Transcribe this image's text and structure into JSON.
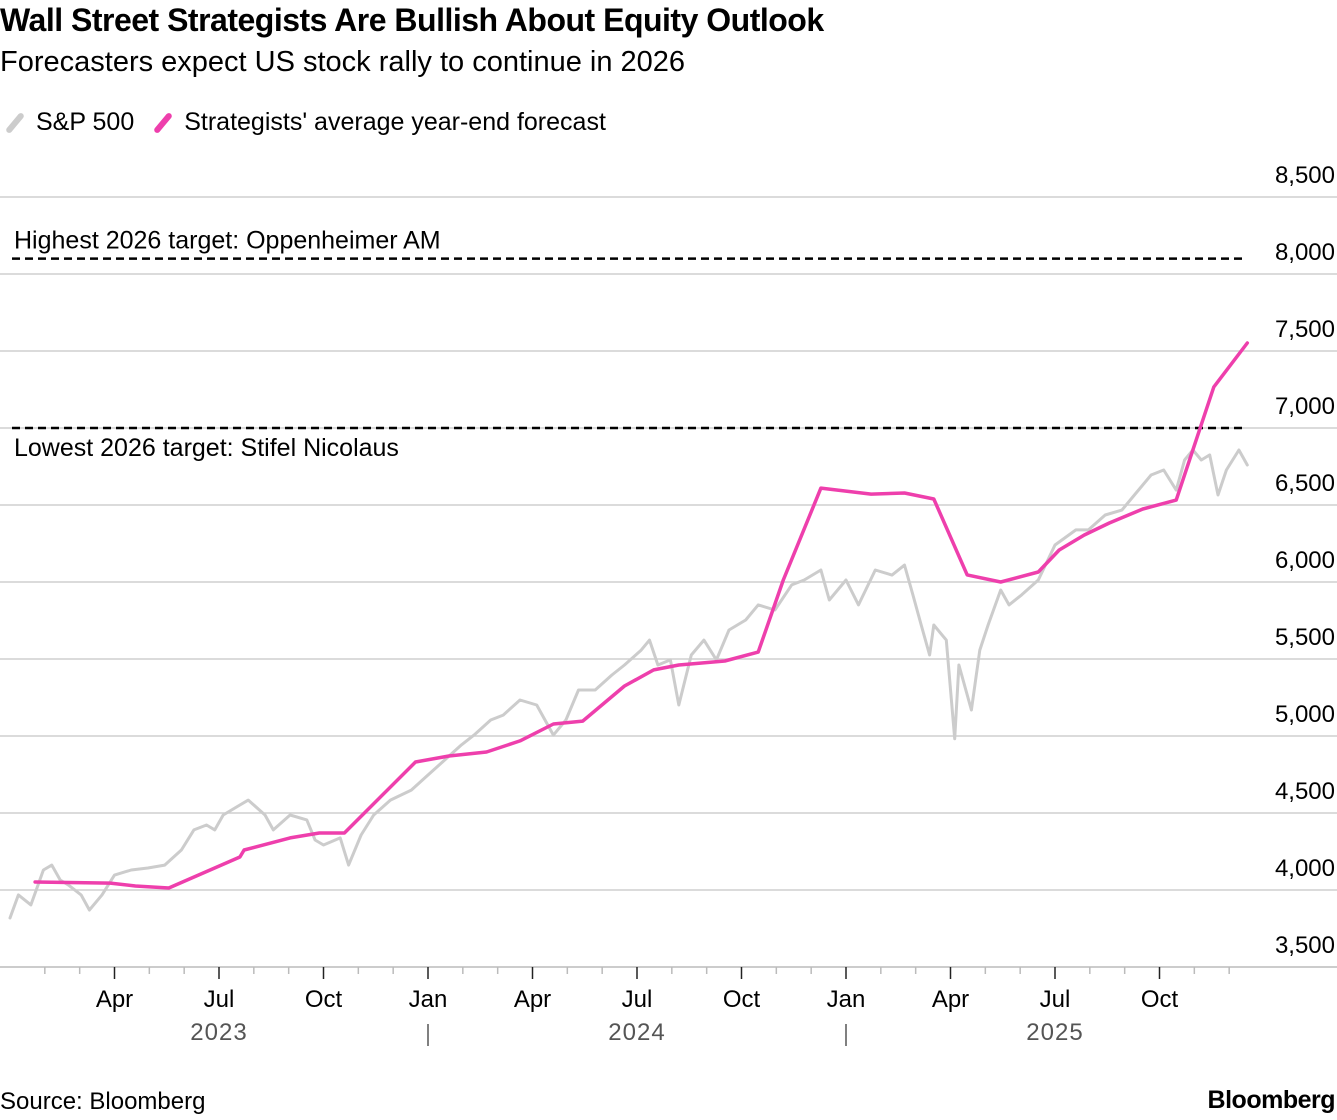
{
  "chart_data": {
    "type": "line",
    "title": "Wall Street Strategists Are Bullish About Equity Outlook",
    "subtitle": "Forecasters expect US stock rally to continue in 2026",
    "xlabel": "",
    "ylabel": "",
    "ylim": [
      3500,
      8500
    ],
    "yticks": [
      3500,
      4000,
      4500,
      5000,
      5500,
      6000,
      6500,
      7000,
      7500,
      8000,
      8500
    ],
    "ytick_labels": [
      "3,500",
      "4,000",
      "4,500",
      "5,000",
      "5,500",
      "6,000",
      "6,500",
      "7,000",
      "7,500",
      "8,000",
      "8,500"
    ],
    "xlim": [
      2023.0,
      2026.0
    ],
    "xticks": [
      {
        "x": 2023.25,
        "label": "Apr"
      },
      {
        "x": 2023.5,
        "label": "Jul"
      },
      {
        "x": 2023.75,
        "label": "Oct"
      },
      {
        "x": 2024.0,
        "label": "Jan"
      },
      {
        "x": 2024.25,
        "label": "Apr"
      },
      {
        "x": 2024.5,
        "label": "Jul"
      },
      {
        "x": 2024.75,
        "label": "Oct"
      },
      {
        "x": 2025.0,
        "label": "Jan"
      },
      {
        "x": 2025.25,
        "label": "Apr"
      },
      {
        "x": 2025.5,
        "label": "Jul"
      },
      {
        "x": 2025.75,
        "label": "Oct"
      }
    ],
    "year_labels": [
      {
        "x": 2023.5,
        "label": "2023"
      },
      {
        "x": 2024.5,
        "label": "2024"
      },
      {
        "x": 2025.5,
        "label": "2025"
      }
    ],
    "grid": true,
    "legend_position": "top-left",
    "colors": {
      "sp500": "#cccccc",
      "forecast": "#ee3fac",
      "grid": "#cfcfcf",
      "reference": "#000000"
    },
    "reference_lines": [
      {
        "value": 8100,
        "label": "Highest 2026 target: Oppenheimer AM",
        "label_side": "above"
      },
      {
        "value": 7000,
        "label": "Lowest 2026 target: Stifel Nicolaus",
        "label_side": "below"
      }
    ],
    "series": [
      {
        "name": "S&P 500",
        "color": "#cccccc",
        "x": [
          2023.0,
          2023.02,
          2023.05,
          2023.08,
          2023.1,
          2023.12,
          2023.14,
          2023.17,
          2023.19,
          2023.22,
          2023.25,
          2023.29,
          2023.33,
          2023.37,
          2023.41,
          2023.44,
          2023.47,
          2023.49,
          2023.51,
          2023.55,
          2023.57,
          2023.61,
          2023.63,
          2023.67,
          2023.71,
          2023.73,
          2023.75,
          2023.79,
          2023.81,
          2023.84,
          2023.87,
          2023.91,
          2023.96,
          2024.0,
          2024.04,
          2024.08,
          2024.11,
          2024.15,
          2024.18,
          2024.22,
          2024.26,
          2024.28,
          2024.3,
          2024.33,
          2024.36,
          2024.4,
          2024.44,
          2024.47,
          2024.51,
          2024.53,
          2024.55,
          2024.58,
          2024.6,
          2024.63,
          2024.66,
          2024.69,
          2024.72,
          2024.76,
          2024.79,
          2024.83,
          2024.87,
          2024.9,
          2024.94,
          2024.96,
          2025.0,
          2025.03,
          2025.07,
          2025.11,
          2025.14,
          2025.16,
          2025.18,
          2025.2,
          2025.21,
          2025.24,
          2025.26,
          2025.27,
          2025.3,
          2025.32,
          2025.34,
          2025.37,
          2025.39,
          2025.42,
          2025.46,
          2025.5,
          2025.55,
          2025.58,
          2025.62,
          2025.66,
          2025.69,
          2025.73,
          2025.76,
          2025.79,
          2025.81,
          2025.83,
          2025.85,
          2025.87,
          2025.89,
          2025.91,
          2025.94,
          2025.96
        ],
        "values": [
          3818,
          3968,
          3903,
          4130,
          4162,
          4065,
          4032,
          3968,
          3870,
          3968,
          4097,
          4130,
          4143,
          4162,
          4260,
          4390,
          4422,
          4390,
          4487,
          4552,
          4584,
          4487,
          4390,
          4487,
          4455,
          4325,
          4292,
          4338,
          4162,
          4357,
          4487,
          4584,
          4649,
          4747,
          4844,
          4942,
          5006,
          5104,
          5136,
          5234,
          5201,
          5104,
          5006,
          5104,
          5299,
          5299,
          5396,
          5461,
          5558,
          5623,
          5461,
          5494,
          5201,
          5526,
          5623,
          5494,
          5688,
          5753,
          5851,
          5818,
          5981,
          6013,
          6078,
          5883,
          6013,
          5851,
          6078,
          6045,
          6110,
          5916,
          5721,
          5526,
          5721,
          5623,
          4982,
          5461,
          5169,
          5558,
          5721,
          5948,
          5851,
          5916,
          6013,
          6240,
          6338,
          6338,
          6435,
          6467,
          6565,
          6695,
          6727,
          6597,
          6792,
          6857,
          6792,
          6825,
          6565,
          6727,
          6857,
          6760
        ]
      },
      {
        "name": "Strategists' average year-end forecast",
        "color": "#ee3fac",
        "x": [
          2023.06,
          2023.24,
          2023.3,
          2023.38,
          2023.55,
          2023.56,
          2023.67,
          2023.74,
          2023.8,
          2023.97,
          2024.05,
          2024.14,
          2024.22,
          2024.3,
          2024.37,
          2024.47,
          2024.54,
          2024.6,
          2024.71,
          2024.79,
          2024.85,
          2024.94,
          2025.06,
          2025.14,
          2025.21,
          2025.29,
          2025.37,
          2025.46,
          2025.51,
          2025.57,
          2025.63,
          2025.71,
          2025.79,
          2025.88,
          2025.96
        ],
        "values": [
          4052,
          4045,
          4026,
          4013,
          4214,
          4260,
          4338,
          4370,
          4370,
          4831,
          4870,
          4896,
          4968,
          5078,
          5097,
          5325,
          5429,
          5461,
          5487,
          5545,
          6013,
          6610,
          6571,
          6578,
          6539,
          6046,
          6000,
          6065,
          6208,
          6305,
          6383,
          6474,
          6532,
          7266,
          7552
        ]
      }
    ],
    "source": "Source: Bloomberg",
    "brand": "Bloomberg"
  }
}
